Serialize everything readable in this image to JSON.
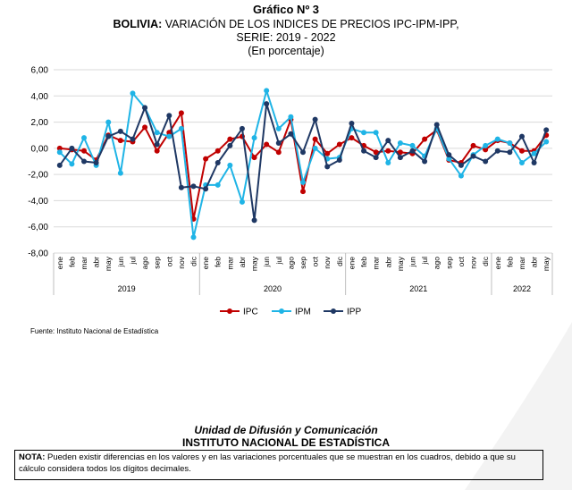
{
  "chart_data": {
    "type": "line",
    "title": "Gráfico Nº 3",
    "subtitle_bold": "BOLIVIA:",
    "subtitle_rest": " VARIACIÓN DE LOS INDICES DE PRECIOS IPC-IPM-IPP,",
    "subtitle2": "SERIE: 2019 - 2022",
    "subtitle3": "(En porcentaje)",
    "ylim": [
      -8,
      6
    ],
    "yticks": [
      "6,00",
      "4,00",
      "2,00",
      "0,00",
      "-2,00",
      "-4,00",
      "-6,00",
      "-8,00"
    ],
    "months": [
      "ene",
      "feb",
      "mar",
      "abr",
      "may",
      "jun",
      "jul",
      "ago",
      "sep",
      "oct",
      "nov",
      "dic",
      "ene",
      "feb",
      "mar",
      "abr",
      "may",
      "jun",
      "jul",
      "ago",
      "sep",
      "oct",
      "nov",
      "dic",
      "ene",
      "feb",
      "mar",
      "abr",
      "may",
      "jun",
      "jul",
      "ago",
      "sep",
      "oct",
      "nov",
      "dic",
      "ene",
      "feb",
      "mar",
      "abr",
      "may"
    ],
    "years": [
      {
        "label": "2019",
        "start": 0,
        "count": 12
      },
      {
        "label": "2020",
        "start": 12,
        "count": 12
      },
      {
        "label": "2021",
        "start": 24,
        "count": 12
      },
      {
        "label": "2022",
        "start": 36,
        "count": 5
      }
    ],
    "grid": true,
    "legend_position": "bottom",
    "series": [
      {
        "name": "IPC",
        "color": "#c00000",
        "values": [
          0.0,
          -0.1,
          -0.2,
          -0.9,
          1.0,
          0.6,
          0.5,
          1.6,
          -0.2,
          1.2,
          2.7,
          -5.4,
          -0.8,
          -0.2,
          0.7,
          0.9,
          -0.7,
          0.3,
          -0.3,
          2.2,
          -3.3,
          0.7,
          -0.4,
          0.3,
          0.8,
          0.2,
          -0.3,
          -0.2,
          -0.3,
          -0.4,
          0.7,
          1.4,
          -0.9,
          -1.1,
          0.2,
          -0.1,
          0.6,
          0.4,
          -0.2,
          -0.2,
          1.0
        ]
      },
      {
        "name": "IPM",
        "color": "#1fb4e6",
        "values": [
          -0.3,
          -1.2,
          0.8,
          -1.3,
          2.0,
          -1.9,
          4.2,
          3.1,
          1.2,
          0.9,
          1.5,
          -6.8,
          -2.8,
          -2.8,
          -1.3,
          -4.1,
          0.8,
          4.4,
          1.5,
          2.4,
          -2.6,
          0.0,
          -0.8,
          -0.7,
          1.5,
          1.2,
          1.2,
          -1.1,
          0.4,
          0.2,
          -0.6,
          1.5,
          -0.8,
          -2.1,
          -0.5,
          0.2,
          0.7,
          0.4,
          -1.1,
          -0.4,
          0.5
        ]
      },
      {
        "name": "IPP",
        "color": "#1f3864",
        "values": [
          -1.3,
          0.0,
          -1.0,
          -1.1,
          0.9,
          1.3,
          0.7,
          3.1,
          0.3,
          2.5,
          -3.0,
          -2.9,
          -3.1,
          -1.1,
          0.2,
          1.5,
          -5.5,
          3.4,
          0.4,
          1.1,
          -0.3,
          2.2,
          -1.4,
          -0.9,
          1.9,
          -0.2,
          -0.7,
          0.6,
          -0.7,
          -0.2,
          -1.0,
          1.8,
          -0.5,
          -1.3,
          -0.6,
          -1.0,
          -0.2,
          -0.3,
          0.9,
          -1.1,
          1.4
        ]
      }
    ]
  },
  "source_text": "Fuente: Instituto Nacional de Estadística",
  "footer": {
    "unit": "Unidad de Difusión y Comunicación",
    "institute": "INSTITUTO NACIONAL DE ESTADÍSTICA"
  },
  "note": {
    "label": "NOTA:",
    "text": " Pueden existir diferencias en los valores y en las variaciones porcentuales que se muestran en los cuadros, debido a que su cálculo considera todos los dígitos decimales."
  }
}
